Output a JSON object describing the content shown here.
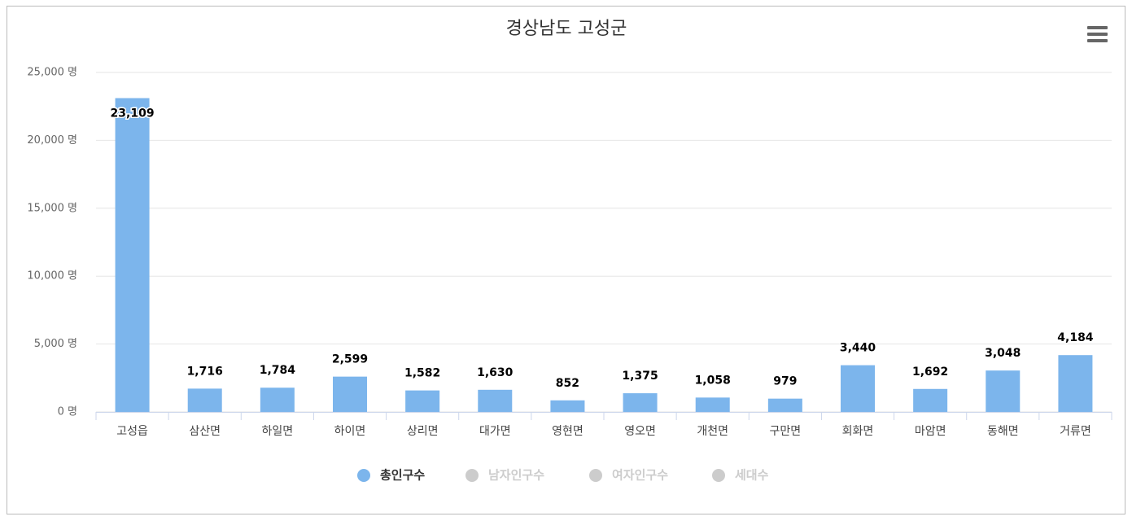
{
  "chart_data": {
    "type": "bar",
    "title": "경상남도 고성군",
    "categories": [
      "고성읍",
      "삼산면",
      "하일면",
      "하이면",
      "상리면",
      "대가면",
      "영현면",
      "영오면",
      "개천면",
      "구만면",
      "회화면",
      "마암면",
      "동해면",
      "거류면"
    ],
    "series": [
      {
        "name": "총인구수",
        "color": "#7cb5ec",
        "values": [
          23109,
          1716,
          1784,
          2599,
          1582,
          1630,
          852,
          1375,
          1058,
          979,
          3440,
          1692,
          3048,
          4184
        ],
        "value_labels": [
          "23,109",
          "1,716",
          "1,784",
          "2,599",
          "1,582",
          "1,630",
          "852",
          "1,375",
          "1,058",
          "979",
          "3,440",
          "1,692",
          "3,048",
          "4,184"
        ]
      },
      {
        "name": "남자인구수",
        "color": "#cccccc",
        "visible": false
      },
      {
        "name": "여자인구수",
        "color": "#cccccc",
        "visible": false
      },
      {
        "name": "세대수",
        "color": "#cccccc",
        "visible": false
      }
    ],
    "ylim": [
      0,
      25000
    ],
    "yticks": [
      {
        "value": 0,
        "label": "0 명"
      },
      {
        "value": 5000,
        "label": "5,000 명"
      },
      {
        "value": 10000,
        "label": "10,000 명"
      },
      {
        "value": 15000,
        "label": "15,000 명"
      },
      {
        "value": 20000,
        "label": "20,000 명"
      },
      {
        "value": 25000,
        "label": "25,000 명"
      }
    ],
    "grid": true
  }
}
